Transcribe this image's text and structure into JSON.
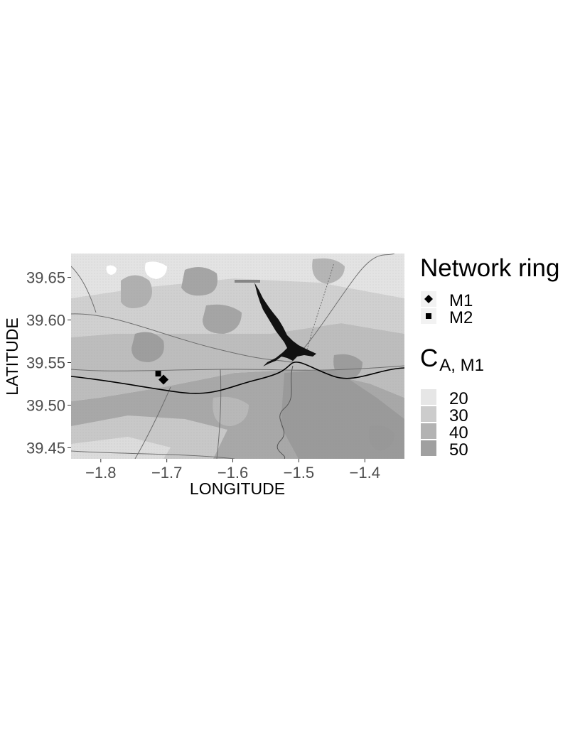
{
  "chart_data": {
    "type": "map",
    "xlabel": "LONGITUDE",
    "ylabel": "LATITUDE",
    "xlim": [
      -1.845,
      -1.34
    ],
    "ylim": [
      39.437,
      39.678
    ],
    "x_ticks": [
      -1.8,
      -1.7,
      -1.6,
      -1.5,
      -1.4
    ],
    "y_ticks": [
      39.45,
      39.5,
      39.55,
      39.6,
      39.65
    ],
    "x_tick_labels": [
      "−1.8",
      "−1.7",
      "−1.6",
      "−1.5",
      "−1.4"
    ],
    "y_tick_labels": [
      "39.45",
      "39.50",
      "39.55",
      "39.60",
      "39.65"
    ],
    "legend_shape": {
      "title": "Network ring",
      "entries": [
        {
          "label": "M1",
          "shape": "diamond"
        },
        {
          "label": "M2",
          "shape": "square"
        }
      ]
    },
    "legend_fill": {
      "title_main": "C",
      "title_sub": "A, M1",
      "entries": [
        {
          "label": "20",
          "color": "#e6e6e6"
        },
        {
          "label": "30",
          "color": "#cccccc"
        },
        {
          "label": "40",
          "color": "#b3b3b3"
        },
        {
          "label": "50",
          "color": "#a0a0a0"
        }
      ]
    },
    "points": [
      {
        "series": "M1",
        "shape": "diamond",
        "lon": -1.705,
        "lat": 39.53
      },
      {
        "series": "M2",
        "shape": "square",
        "lon": -1.713,
        "lat": 39.537
      }
    ]
  }
}
